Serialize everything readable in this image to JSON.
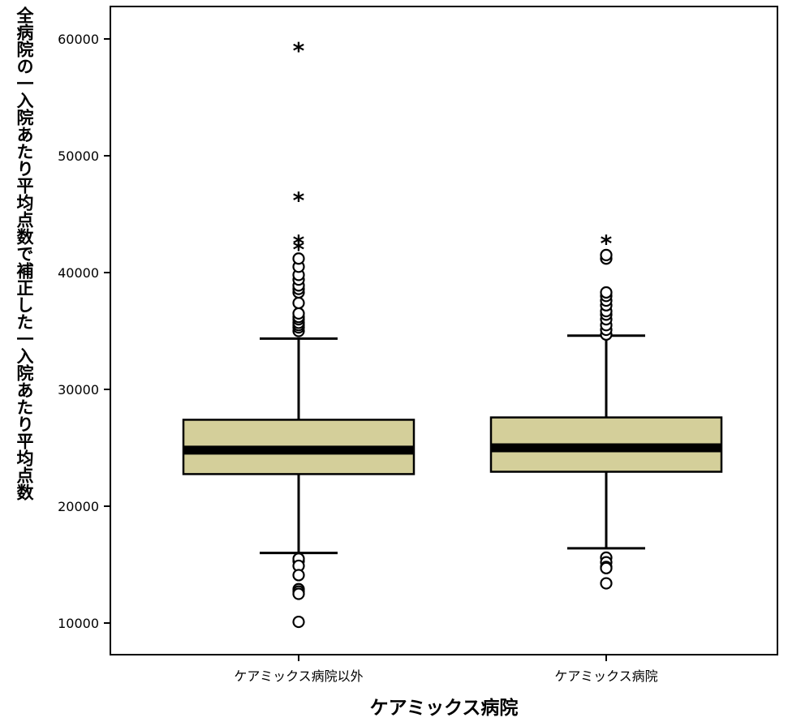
{
  "chart_data": {
    "type": "box",
    "xlabel": "ケアミックス病院",
    "ylabel": "全病院の一入院あたり平均点数で補正した一入院あたり平均点数",
    "ylim": [
      4900,
      63000
    ],
    "yticks": [
      10000,
      20000,
      30000,
      40000,
      50000,
      60000
    ],
    "grid": false,
    "box_color": "#d4cf9a",
    "line_color": "#000000",
    "categories": [
      "ケアミックス病院以外",
      "ケアミックス病院"
    ],
    "series": [
      {
        "category": "ケアミックス病院以外",
        "whisker_low": 16000,
        "q1": 22750,
        "median": 24800,
        "q3": 27400,
        "whisker_high": 34350,
        "outliers_circle": [
          35000,
          35300,
          35500,
          35700,
          36000,
          36200,
          36500,
          37400,
          38300,
          38600,
          38900,
          39400,
          39800,
          40500,
          41200,
          15300,
          15500,
          14900,
          14100,
          12900,
          12700,
          12500,
          10100
        ],
        "outliers_star": [
          42300,
          42800,
          46500,
          59300
        ]
      },
      {
        "category": "ケアミックス病院",
        "whisker_low": 16400,
        "q1": 22950,
        "median": 25000,
        "q3": 27600,
        "whisker_high": 34600,
        "outliers_circle": [
          34700,
          35100,
          35500,
          36000,
          36400,
          36700,
          37200,
          37600,
          38000,
          38300,
          41200,
          41500,
          15600,
          15200,
          14800,
          14700,
          13400
        ],
        "outliers_star": [
          42800
        ]
      }
    ]
  }
}
